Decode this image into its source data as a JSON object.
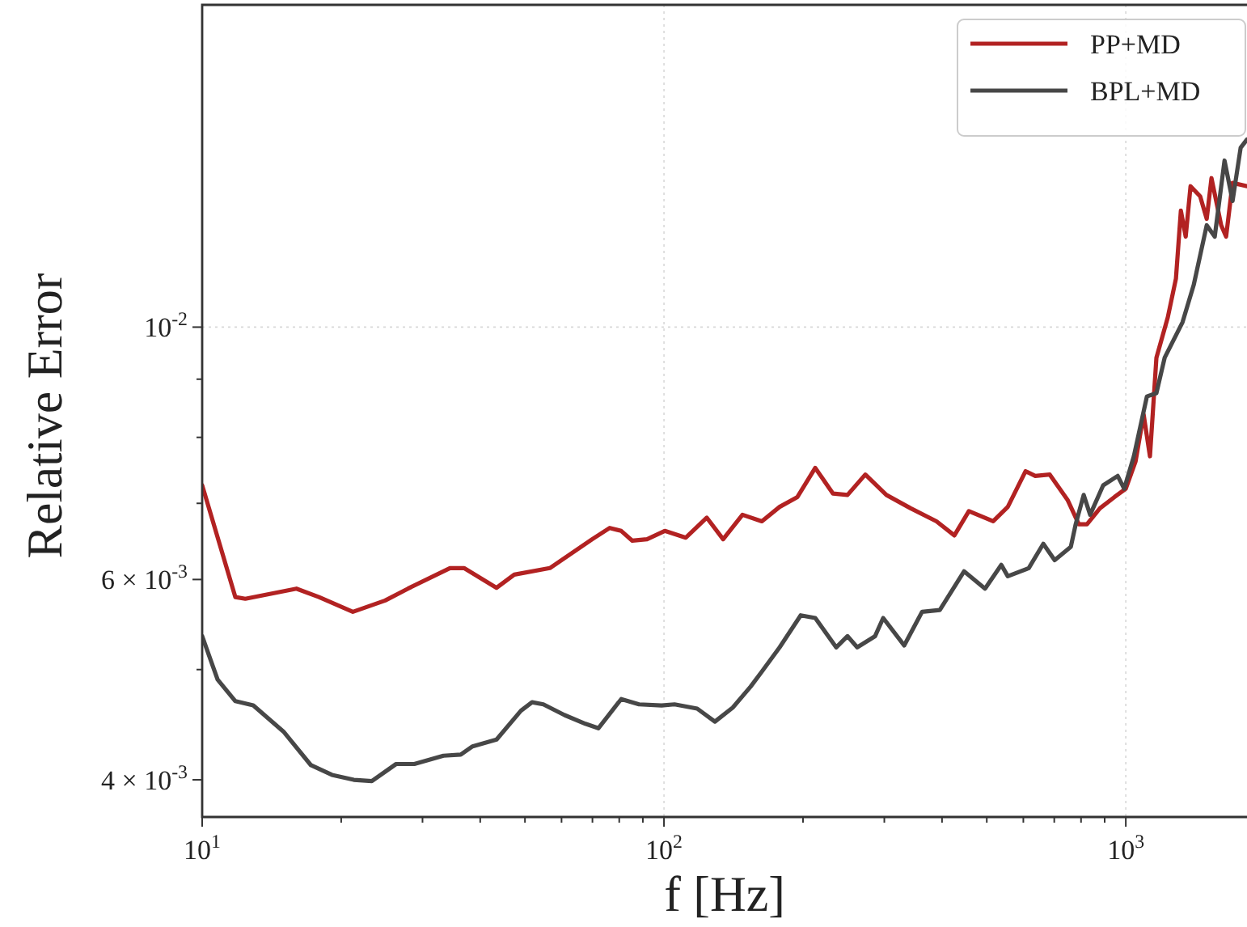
{
  "chart_data": {
    "type": "line",
    "xlabel": "f [Hz]",
    "ylabel": "Relative Error",
    "log": "xy",
    "grid": true,
    "legend": "top right",
    "line_style": "solid",
    "marker": "none",
    "xlim": [
      10,
      1830
    ],
    "ylim": [
      0.00371,
      0.0192
    ],
    "xticks": [
      {
        "value": 10,
        "label": "10$^{1}$"
      },
      {
        "value": 20,
        "label": null
      },
      {
        "value": 30,
        "label": null
      },
      {
        "value": 40,
        "label": null
      },
      {
        "value": 50,
        "label": null
      },
      {
        "value": 60,
        "label": null
      },
      {
        "value": 70,
        "label": null
      },
      {
        "value": 80,
        "label": null
      },
      {
        "value": 90,
        "label": null
      },
      {
        "value": 100,
        "label": "10$^{2}$"
      },
      {
        "value": 200,
        "label": null
      },
      {
        "value": 300,
        "label": null
      },
      {
        "value": 400,
        "label": null
      },
      {
        "value": 500,
        "label": null
      },
      {
        "value": 600,
        "label": null
      },
      {
        "value": 700,
        "label": null
      },
      {
        "value": 800,
        "label": null
      },
      {
        "value": 900,
        "label": null
      },
      {
        "value": 1000,
        "label": "10$^{3}$"
      }
    ],
    "yticks": [
      {
        "value": 0.004,
        "label": "4 × 10$^{-3}$"
      },
      {
        "value": 0.005,
        "label": null
      },
      {
        "value": 0.006,
        "label": "6 × 10$^{-3}$"
      },
      {
        "value": 0.007,
        "label": null
      },
      {
        "value": 0.008,
        "label": null
      },
      {
        "value": 0.009,
        "label": null
      },
      {
        "value": 0.01,
        "label": "10$^{-2}$"
      }
    ],
    "series": [
      {
        "name": "PP+MD",
        "color": "#b22222",
        "x": [
          10,
          11.8,
          12.4,
          16.0,
          17.9,
          21.2,
          24.9,
          27.9,
          34.4,
          36.9,
          43.4,
          47.4,
          56.6,
          69.9,
          76.3,
          80.8,
          85.4,
          91.9,
          100.4,
          111.5,
          123.8,
          134.3,
          147.9,
          162.9,
          178,
          194.5,
          212.6,
          232.3,
          249.7,
          272.9,
          303.1,
          342.1,
          389.1,
          425.4,
          457.3,
          516.2,
          555.2,
          606.5,
          636.7,
          684.5,
          747.9,
          791.3,
          824,
          879,
          945.2,
          1000,
          1050,
          1093,
          1128,
          1165,
          1233,
          1284,
          1316,
          1348,
          1381,
          1449,
          1497,
          1533,
          1609,
          1649,
          1703,
          1830
        ],
        "values": [
          0.00726,
          0.00579,
          0.00577,
          0.00589,
          0.00579,
          0.00562,
          0.00575,
          0.00589,
          0.00614,
          0.00614,
          0.0059,
          0.00606,
          0.00614,
          0.00651,
          0.00666,
          0.00662,
          0.00649,
          0.00651,
          0.00662,
          0.00653,
          0.0068,
          0.00651,
          0.00684,
          0.00675,
          0.00695,
          0.00709,
          0.00752,
          0.00714,
          0.00712,
          0.00742,
          0.00712,
          0.00693,
          0.00675,
          0.00656,
          0.00689,
          0.00675,
          0.00695,
          0.00747,
          0.0074,
          0.00742,
          0.00705,
          0.00671,
          0.00671,
          0.00693,
          0.00709,
          0.00721,
          0.00762,
          0.00838,
          0.0077,
          0.0094,
          0.0102,
          0.01103,
          0.01266,
          0.01201,
          0.0133,
          0.01303,
          0.01245,
          0.01352,
          0.01229,
          0.01201,
          0.01339,
          0.0133
        ]
      },
      {
        "name": "BPL+MD",
        "color": "#474747",
        "x": [
          10,
          10.8,
          11.8,
          12.9,
          15.0,
          17.2,
          19.1,
          21.3,
          23.3,
          26.3,
          28.8,
          33.3,
          36.3,
          38.5,
          43.4,
          49.0,
          51.8,
          54.8,
          60.9,
          67.6,
          72.1,
          80.8,
          88.3,
          98.8,
          105.4,
          118,
          128.9,
          140.9,
          154,
          162.9,
          178,
          197.7,
          212.6,
          236,
          249.7,
          262.1,
          286.5,
          298.3,
          331.2,
          362.1,
          395.6,
          446.4,
          495.7,
          537.6,
          555.2,
          616.4,
          662.8,
          701.4,
          760.3,
          778.9,
          810.6,
          837.2,
          893.3,
          960.5,
          992,
          1041,
          1111,
          1165,
          1214,
          1327,
          1403,
          1497,
          1558,
          1636,
          1703,
          1773,
          1830
        ],
        "values": [
          0.00535,
          0.0049,
          0.00469,
          0.00465,
          0.00441,
          0.00412,
          0.00404,
          0.004,
          0.00399,
          0.00413,
          0.00413,
          0.0042,
          0.00421,
          0.00428,
          0.00434,
          0.0046,
          0.00468,
          0.00466,
          0.00456,
          0.00448,
          0.00444,
          0.00471,
          0.00466,
          0.00465,
          0.00466,
          0.00462,
          0.0045,
          0.00463,
          0.00483,
          0.00498,
          0.00523,
          0.00558,
          0.00555,
          0.00523,
          0.00535,
          0.00523,
          0.00535,
          0.00555,
          0.00525,
          0.00562,
          0.00564,
          0.0061,
          0.00589,
          0.00618,
          0.00604,
          0.00614,
          0.00645,
          0.00624,
          0.00641,
          0.00671,
          0.00712,
          0.00684,
          0.00726,
          0.0074,
          0.00721,
          0.0077,
          0.00869,
          0.00875,
          0.0094,
          0.0101,
          0.01089,
          0.01229,
          0.01201,
          0.01401,
          0.01291,
          0.01438,
          0.01462
        ]
      }
    ]
  }
}
